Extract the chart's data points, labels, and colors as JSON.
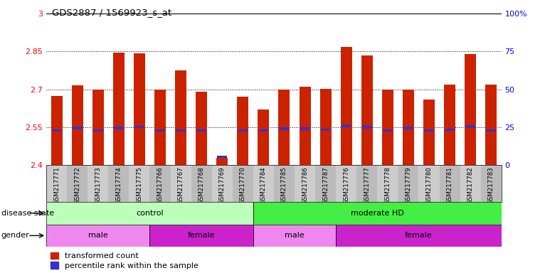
{
  "title": "GDS2887 / 1569923_s_at",
  "samples": [
    "GSM217771",
    "GSM217772",
    "GSM217773",
    "GSM217774",
    "GSM217775",
    "GSM217766",
    "GSM217767",
    "GSM217768",
    "GSM217769",
    "GSM217770",
    "GSM217784",
    "GSM217785",
    "GSM217786",
    "GSM217787",
    "GSM217776",
    "GSM217777",
    "GSM217778",
    "GSM217779",
    "GSM217780",
    "GSM217781",
    "GSM217782",
    "GSM217783"
  ],
  "bar_tops": [
    2.675,
    2.715,
    2.7,
    2.845,
    2.843,
    2.7,
    2.775,
    2.69,
    2.43,
    2.67,
    2.62,
    2.698,
    2.71,
    2.703,
    2.868,
    2.835,
    2.7,
    2.7,
    2.66,
    2.718,
    2.84,
    2.718
  ],
  "blue_pos": [
    2.537,
    2.548,
    2.537,
    2.548,
    2.552,
    2.537,
    2.538,
    2.537,
    2.433,
    2.537,
    2.537,
    2.545,
    2.545,
    2.54,
    2.555,
    2.55,
    2.537,
    2.548,
    2.538,
    2.54,
    2.553,
    2.537
  ],
  "bar_base": 2.4,
  "ylim_left": [
    2.4,
    3.0
  ],
  "ylim_right": [
    0,
    100
  ],
  "yticks_left": [
    2.4,
    2.55,
    2.7,
    2.85,
    3.0
  ],
  "yticks_right": [
    0,
    25,
    50,
    75,
    100
  ],
  "ytick_labels_left": [
    "2.4",
    "2.55",
    "2.7",
    "2.85",
    "3"
  ],
  "ytick_labels_right": [
    "0",
    "25",
    "50",
    "75",
    "100%"
  ],
  "hlines": [
    2.55,
    2.7,
    2.85
  ],
  "bar_color": "#cc2200",
  "blue_color": "#3333cc",
  "disease_state_groups": [
    {
      "label": "control",
      "start": 0,
      "end": 9,
      "color": "#bbffbb"
    },
    {
      "label": "moderate HD",
      "start": 10,
      "end": 21,
      "color": "#44ee44"
    }
  ],
  "gender_groups": [
    {
      "label": "male",
      "start": 0,
      "end": 4,
      "color": "#ee88ee"
    },
    {
      "label": "female",
      "start": 5,
      "end": 9,
      "color": "#cc22cc"
    },
    {
      "label": "male",
      "start": 10,
      "end": 13,
      "color": "#ee88ee"
    },
    {
      "label": "female",
      "start": 14,
      "end": 21,
      "color": "#cc22cc"
    }
  ],
  "legend_items": [
    {
      "label": "transformed count",
      "color": "#cc2200"
    },
    {
      "label": "percentile rank within the sample",
      "color": "#3333cc"
    }
  ],
  "disease_label": "disease state",
  "gender_label": "gender",
  "bar_width": 0.55,
  "bg_color": "#ffffff",
  "tick_bg_color": "#cccccc"
}
